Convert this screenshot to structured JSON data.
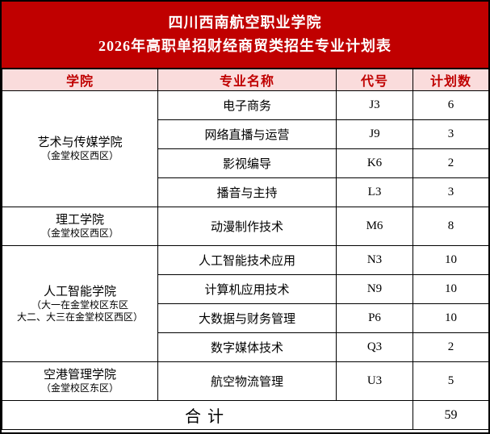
{
  "title": {
    "line1": "四川西南航空职业学院",
    "line2": "2026年高职单招财经商贸类招生专业计划表"
  },
  "columns": {
    "college": "学院",
    "major": "专业名称",
    "code": "代号",
    "plan": "计划数"
  },
  "colors": {
    "title_bg": "#c00000",
    "title_text": "#ffffff",
    "header_bg": "#fadcdc",
    "header_text": "#c00000",
    "body_text": "#000000",
    "border": "#000000"
  },
  "groups": [
    {
      "college": "艺术与传媒学院",
      "campus_lines": [
        "（金堂校区西区）"
      ],
      "majors": [
        {
          "name": "电子商务",
          "code": "J3",
          "plan": "6"
        },
        {
          "name": "网络直播与运营",
          "code": "J9",
          "plan": "3"
        },
        {
          "name": "影视编导",
          "code": "K6",
          "plan": "2"
        },
        {
          "name": "播音与主持",
          "code": "L3",
          "plan": "3"
        }
      ]
    },
    {
      "college": "理工学院",
      "campus_lines": [
        "（金堂校区西区）"
      ],
      "majors": [
        {
          "name": "动漫制作技术",
          "code": "M6",
          "plan": "8"
        }
      ]
    },
    {
      "college": "人工智能学院",
      "campus_lines": [
        "（大一在金堂校区东区",
        "大二、大三在金堂校区西区）"
      ],
      "majors": [
        {
          "name": "人工智能技术应用",
          "code": "N3",
          "plan": "10"
        },
        {
          "name": "计算机应用技术",
          "code": "N9",
          "plan": "10"
        },
        {
          "name": "大数据与财务管理",
          "code": "P6",
          "plan": "10"
        },
        {
          "name": "数字媒体技术",
          "code": "Q3",
          "plan": "2"
        }
      ]
    },
    {
      "college": "空港管理学院",
      "campus_lines": [
        "（金堂校区东区）"
      ],
      "majors": [
        {
          "name": "航空物流管理",
          "code": "U3",
          "plan": "5"
        }
      ]
    }
  ],
  "total": {
    "label": "合计",
    "value": "59"
  }
}
